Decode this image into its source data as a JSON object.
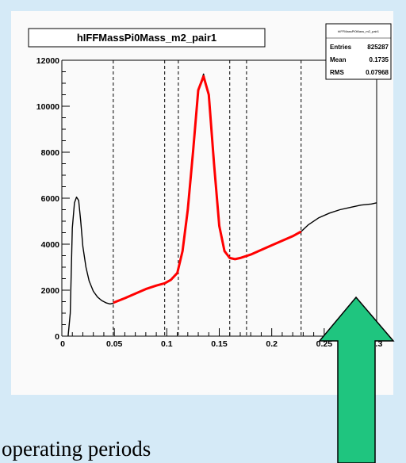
{
  "caption": "operating periods",
  "arrow_color": "#1fc57f",
  "chart_data": {
    "type": "line",
    "title": "hIFFMassPi0Mass_m2_pair1",
    "xlabel": "",
    "ylabel": "",
    "xlim": [
      0,
      0.3
    ],
    "ylim": [
      0,
      12000
    ],
    "xticks": [
      0,
      0.05,
      0.1,
      0.15,
      0.2,
      0.25,
      0.3
    ],
    "xtick_labels": [
      "0",
      "0.05",
      "0.1",
      "0.15",
      "0.2",
      "0.25",
      "0.3"
    ],
    "yticks": [
      0,
      2000,
      4000,
      6000,
      8000,
      10000,
      12000
    ],
    "ytick_labels": [
      "0",
      "2000",
      "4000",
      "6000",
      "8000",
      "10000",
      "12000"
    ],
    "stats": {
      "name": "hIFFMassPi0Mass_m2_pair1",
      "rows": [
        {
          "label": "Entries",
          "value": "825287"
        },
        {
          "label": "Mean",
          "value": "0.1735"
        },
        {
          "label": "RMS",
          "value": "0.07968"
        }
      ]
    },
    "dashed_lines_x": [
      0.049,
      0.098,
      0.111,
      0.16,
      0.176,
      0.228
    ],
    "series": [
      {
        "color": "#000000",
        "x": [
          0.006,
          0.008,
          0.01,
          0.012,
          0.014,
          0.016,
          0.018,
          0.02,
          0.023,
          0.026,
          0.03,
          0.034,
          0.038,
          0.042,
          0.046,
          0.05,
          0.06,
          0.07,
          0.08,
          0.09,
          0.098,
          0.104,
          0.11,
          0.115,
          0.12,
          0.125,
          0.13,
          0.135,
          0.14,
          0.145,
          0.15,
          0.155,
          0.16,
          0.165,
          0.17,
          0.18,
          0.19,
          0.2,
          0.21,
          0.22,
          0.228,
          0.235,
          0.245,
          0.255,
          0.265,
          0.275,
          0.285,
          0.295,
          0.3
        ],
        "y": [
          0,
          1000,
          4700,
          5800,
          6050,
          5900,
          5000,
          3900,
          3000,
          2400,
          1950,
          1700,
          1550,
          1450,
          1400,
          1450,
          1650,
          1850,
          2050,
          2200,
          2300,
          2450,
          2750,
          3700,
          5500,
          8000,
          10700,
          11400,
          10500,
          7500,
          4800,
          3700,
          3400,
          3350,
          3400,
          3550,
          3750,
          3950,
          4150,
          4350,
          4550,
          4850,
          5150,
          5350,
          5500,
          5600,
          5700,
          5750,
          5800
        ]
      },
      {
        "color": "#ff0000",
        "x": [
          0.049,
          0.06,
          0.07,
          0.08,
          0.09,
          0.098,
          0.104,
          0.11,
          0.115,
          0.12,
          0.125,
          0.13,
          0.135,
          0.14,
          0.145,
          0.15,
          0.155,
          0.16,
          0.165,
          0.17,
          0.18,
          0.19,
          0.2,
          0.21,
          0.22,
          0.228
        ],
        "y": [
          1450,
          1650,
          1850,
          2050,
          2200,
          2300,
          2450,
          2750,
          3700,
          5500,
          8000,
          10700,
          11300,
          10500,
          7500,
          4800,
          3700,
          3400,
          3350,
          3400,
          3550,
          3750,
          3950,
          4150,
          4350,
          4550
        ]
      }
    ]
  }
}
